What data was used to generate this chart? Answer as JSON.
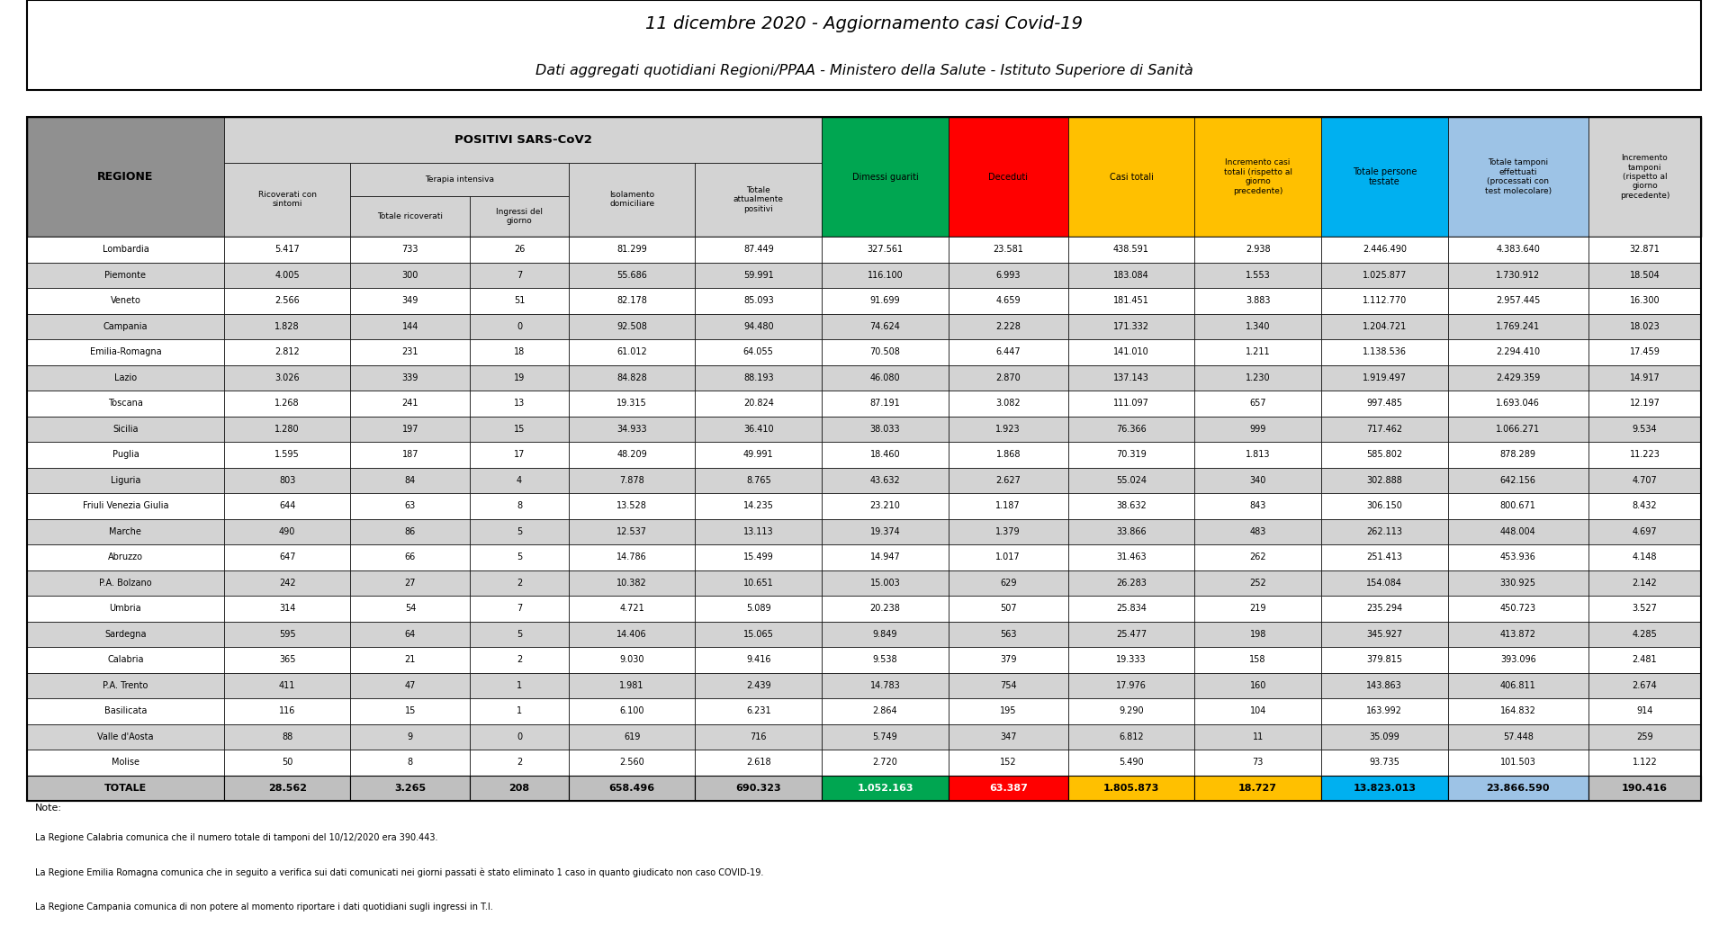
{
  "title1": "11 dicembre 2020 - Aggiornamento casi Covid-19",
  "title2": "Dati aggregati quotidiani Regioni/PPAA - Ministero della Salute - Istituto Superiore di Sanità",
  "regions": [
    "Lombardia",
    "Piemonte",
    "Veneto",
    "Campania",
    "Emilia-Romagna",
    "Lazio",
    "Toscana",
    "Sicilia",
    "Puglia",
    "Liguria",
    "Friuli Venezia Giulia",
    "Marche",
    "Abruzzo",
    "P.A. Bolzano",
    "Umbria",
    "Sardegna",
    "Calabria",
    "P.A. Trento",
    "Basilicata",
    "Valle d'Aosta",
    "Molise"
  ],
  "data": [
    [
      5417,
      733,
      26,
      81299,
      87449,
      327561,
      23581,
      438591,
      2938,
      2446490,
      4383640,
      32871
    ],
    [
      4005,
      300,
      7,
      55686,
      59991,
      116100,
      6993,
      183084,
      1553,
      1025877,
      1730912,
      18504
    ],
    [
      2566,
      349,
      51,
      82178,
      85093,
      91699,
      4659,
      181451,
      3883,
      1112770,
      2957445,
      16300
    ],
    [
      1828,
      144,
      0,
      92508,
      94480,
      74624,
      2228,
      171332,
      1340,
      1204721,
      1769241,
      18023
    ],
    [
      2812,
      231,
      18,
      61012,
      64055,
      70508,
      6447,
      141010,
      1211,
      1138536,
      2294410,
      17459
    ],
    [
      3026,
      339,
      19,
      84828,
      88193,
      46080,
      2870,
      137143,
      1230,
      1919497,
      2429359,
      14917
    ],
    [
      1268,
      241,
      13,
      19315,
      20824,
      87191,
      3082,
      111097,
      657,
      997485,
      1693046,
      12197
    ],
    [
      1280,
      197,
      15,
      34933,
      36410,
      38033,
      1923,
      76366,
      999,
      717462,
      1066271,
      9534
    ],
    [
      1595,
      187,
      17,
      48209,
      49991,
      18460,
      1868,
      70319,
      1813,
      585802,
      878289,
      11223
    ],
    [
      803,
      84,
      4,
      7878,
      8765,
      43632,
      2627,
      55024,
      340,
      302888,
      642156,
      4707
    ],
    [
      644,
      63,
      8,
      13528,
      14235,
      23210,
      1187,
      38632,
      843,
      306150,
      800671,
      8432
    ],
    [
      490,
      86,
      5,
      12537,
      13113,
      19374,
      1379,
      33866,
      483,
      262113,
      448004,
      4697
    ],
    [
      647,
      66,
      5,
      14786,
      15499,
      14947,
      1017,
      31463,
      262,
      251413,
      453936,
      4148
    ],
    [
      242,
      27,
      2,
      10382,
      10651,
      15003,
      629,
      26283,
      252,
      154084,
      330925,
      2142
    ],
    [
      314,
      54,
      7,
      4721,
      5089,
      20238,
      507,
      25834,
      219,
      235294,
      450723,
      3527
    ],
    [
      595,
      64,
      5,
      14406,
      15065,
      9849,
      563,
      25477,
      198,
      345927,
      413872,
      4285
    ],
    [
      365,
      21,
      2,
      9030,
      9416,
      9538,
      379,
      19333,
      158,
      379815,
      393096,
      2481
    ],
    [
      411,
      47,
      1,
      1981,
      2439,
      14783,
      754,
      17976,
      160,
      143863,
      406811,
      2674
    ],
    [
      116,
      15,
      1,
      6100,
      6231,
      2864,
      195,
      9290,
      104,
      163992,
      164832,
      914
    ],
    [
      88,
      9,
      0,
      619,
      716,
      5749,
      347,
      6812,
      11,
      35099,
      57448,
      259
    ],
    [
      50,
      8,
      2,
      2560,
      2618,
      2720,
      152,
      5490,
      73,
      93735,
      101503,
      1122
    ]
  ],
  "totals": [
    28562,
    3265,
    208,
    658496,
    690323,
    1052163,
    63387,
    1805873,
    18727,
    13823013,
    23866590,
    190416
  ],
  "notes": [
    "La Regione Calabria comunica che il numero totale di tamponi del 10/12/2020 era 390.443.",
    "La Regione Emilia Romagna comunica che in seguito a verifica sui dati comunicati nei giorni passati è stato eliminato 1 caso in quanto giudicato non caso COVID-19.",
    "La Regione Campania comunica di non potere al momento riportare i dati quotidiani sugli ingressi in T.I."
  ],
  "col_widths_raw": [
    1.4,
    0.9,
    0.85,
    0.7,
    0.9,
    0.9,
    0.9,
    0.85,
    0.9,
    0.9,
    0.9,
    1.0,
    0.8
  ],
  "header_gray_dark": "#909090",
  "header_gray_light": "#d3d3d3",
  "green": "#00a651",
  "red": "#ff0000",
  "yellow": "#ffc000",
  "cyan": "#00b0f0",
  "light_blue": "#9dc3e6",
  "light_gray_row": "#d3d3d3",
  "white": "#ffffff",
  "total_row_gray": "#bfbfbf"
}
